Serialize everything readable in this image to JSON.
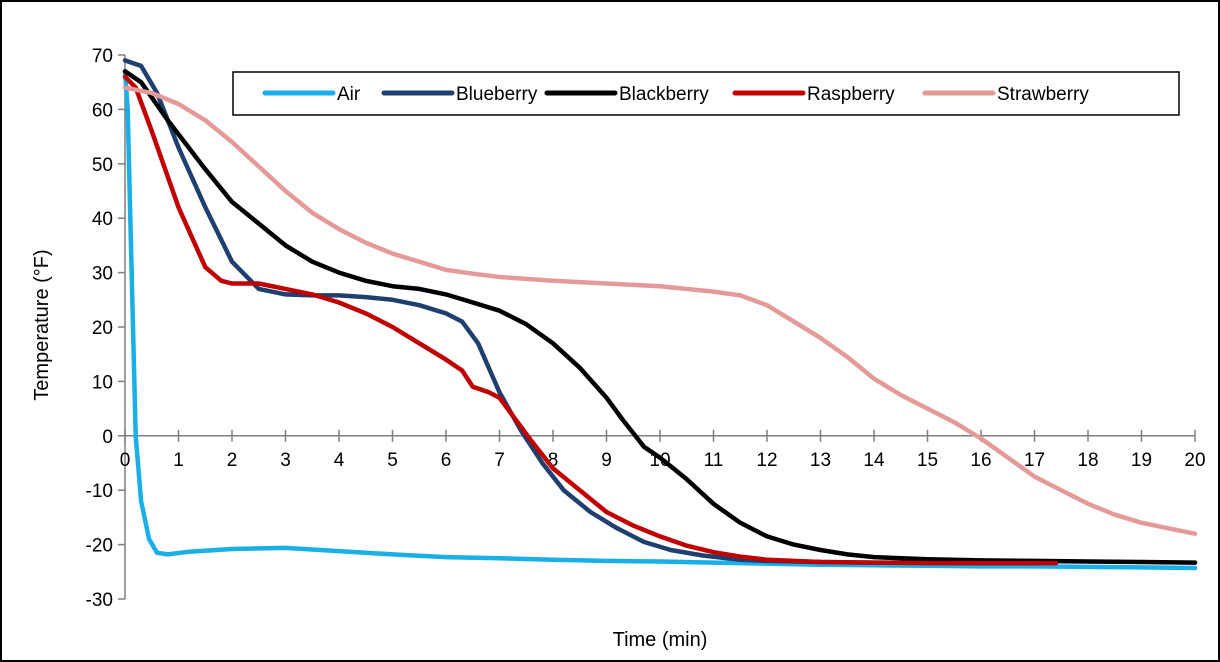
{
  "chart_data": {
    "type": "line",
    "title": "",
    "xlabel": "Time (min)",
    "ylabel": "Temperature (°F)",
    "xlim": [
      0,
      20
    ],
    "ylim": [
      -30,
      70
    ],
    "xticks": [
      "0",
      "1",
      "2",
      "3",
      "4",
      "5",
      "6",
      "7",
      "8",
      "9",
      "10",
      "11",
      "12",
      "13",
      "14",
      "15",
      "16",
      "17",
      "18",
      "19",
      "20"
    ],
    "yticks": [
      "70",
      "60",
      "50",
      "40",
      "30",
      "20",
      "10",
      "0",
      "-10",
      "-20",
      "-30"
    ],
    "grid": false,
    "legend_position": "top-right",
    "series": [
      {
        "name": "Air",
        "color": "#1AAFE6",
        "points": [
          [
            0,
            67
          ],
          [
            0.05,
            60
          ],
          [
            0.1,
            40
          ],
          [
            0.15,
            20
          ],
          [
            0.2,
            0
          ],
          [
            0.3,
            -12
          ],
          [
            0.45,
            -19
          ],
          [
            0.6,
            -21.5
          ],
          [
            0.8,
            -21.8
          ],
          [
            1.2,
            -21.3
          ],
          [
            2,
            -20.8
          ],
          [
            3,
            -20.6
          ],
          [
            4,
            -21.2
          ],
          [
            5,
            -21.8
          ],
          [
            6,
            -22.3
          ],
          [
            7,
            -22.5
          ],
          [
            8,
            -22.8
          ],
          [
            9,
            -23
          ],
          [
            10,
            -23.1
          ],
          [
            11,
            -23.3
          ],
          [
            12,
            -23.5
          ],
          [
            13,
            -23.7
          ],
          [
            14,
            -23.8
          ],
          [
            15,
            -23.9
          ],
          [
            16,
            -24
          ],
          [
            17,
            -24
          ],
          [
            18,
            -24.1
          ],
          [
            19,
            -24.2
          ],
          [
            20,
            -24.3
          ]
        ]
      },
      {
        "name": "Blueberry",
        "color": "#1F3F6E",
        "points": [
          [
            0,
            69
          ],
          [
            0.3,
            68
          ],
          [
            0.6,
            63
          ],
          [
            1,
            53
          ],
          [
            1.5,
            42
          ],
          [
            2,
            32
          ],
          [
            2.5,
            27
          ],
          [
            3,
            26
          ],
          [
            3.5,
            25.8
          ],
          [
            4,
            25.8
          ],
          [
            4.5,
            25.5
          ],
          [
            5,
            25
          ],
          [
            5.5,
            24
          ],
          [
            6,
            22.5
          ],
          [
            6.3,
            21
          ],
          [
            6.6,
            17
          ],
          [
            7,
            8
          ],
          [
            7.4,
            1
          ],
          [
            7.8,
            -5
          ],
          [
            8.2,
            -10
          ],
          [
            8.7,
            -14
          ],
          [
            9.2,
            -17
          ],
          [
            9.7,
            -19.5
          ],
          [
            10.2,
            -21
          ],
          [
            10.8,
            -22
          ],
          [
            11.5,
            -22.8
          ],
          [
            12,
            -23
          ],
          [
            13,
            -23.2
          ],
          [
            14,
            -23.3
          ],
          [
            15,
            -23.3
          ],
          [
            16,
            -23.4
          ],
          [
            17,
            -23.4
          ]
        ]
      },
      {
        "name": "Blackberry",
        "color": "#000000",
        "points": [
          [
            0,
            67
          ],
          [
            0.3,
            65
          ],
          [
            0.8,
            58
          ],
          [
            1.5,
            49
          ],
          [
            2,
            43
          ],
          [
            2.5,
            39
          ],
          [
            3,
            35
          ],
          [
            3.5,
            32
          ],
          [
            4,
            30
          ],
          [
            4.5,
            28.5
          ],
          [
            5,
            27.5
          ],
          [
            5.5,
            27
          ],
          [
            6,
            26
          ],
          [
            6.5,
            24.5
          ],
          [
            7,
            23
          ],
          [
            7.5,
            20.5
          ],
          [
            8,
            17
          ],
          [
            8.5,
            12.5
          ],
          [
            9,
            7
          ],
          [
            9.3,
            3
          ],
          [
            9.7,
            -2
          ],
          [
            10,
            -4
          ],
          [
            10.5,
            -8
          ],
          [
            11,
            -12.5
          ],
          [
            11.5,
            -16
          ],
          [
            12,
            -18.5
          ],
          [
            12.5,
            -20
          ],
          [
            13,
            -21
          ],
          [
            13.5,
            -21.8
          ],
          [
            14,
            -22.3
          ],
          [
            15,
            -22.7
          ],
          [
            16,
            -22.9
          ],
          [
            17,
            -23
          ],
          [
            18,
            -23.1
          ],
          [
            19,
            -23.2
          ],
          [
            20,
            -23.3
          ]
        ]
      },
      {
        "name": "Raspberry",
        "color": "#C00000",
        "points": [
          [
            0,
            66
          ],
          [
            0.2,
            64
          ],
          [
            0.5,
            56
          ],
          [
            1,
            42
          ],
          [
            1.5,
            31
          ],
          [
            1.8,
            28.5
          ],
          [
            2,
            28
          ],
          [
            2.5,
            28
          ],
          [
            3,
            27
          ],
          [
            3.5,
            26
          ],
          [
            4,
            24.5
          ],
          [
            4.5,
            22.5
          ],
          [
            5,
            20
          ],
          [
            5.5,
            17
          ],
          [
            6,
            14
          ],
          [
            6.3,
            12
          ],
          [
            6.5,
            9
          ],
          [
            6.8,
            8
          ],
          [
            7,
            7
          ],
          [
            7.3,
            3
          ],
          [
            7.6,
            -1
          ],
          [
            8,
            -6
          ],
          [
            8.5,
            -10
          ],
          [
            9,
            -14
          ],
          [
            9.5,
            -16.5
          ],
          [
            10,
            -18.5
          ],
          [
            10.5,
            -20.2
          ],
          [
            11,
            -21.4
          ],
          [
            11.5,
            -22.2
          ],
          [
            12,
            -22.8
          ],
          [
            13,
            -23.2
          ],
          [
            14,
            -23.3
          ],
          [
            15,
            -23.4
          ],
          [
            16,
            -23.4
          ],
          [
            17,
            -23.4
          ],
          [
            17.4,
            -23.4
          ]
        ]
      },
      {
        "name": "Strawberry",
        "color": "#E39A98",
        "points": [
          [
            0,
            64
          ],
          [
            0.5,
            63
          ],
          [
            1,
            61
          ],
          [
            1.5,
            58
          ],
          [
            2,
            54
          ],
          [
            2.5,
            49.5
          ],
          [
            3,
            45
          ],
          [
            3.5,
            41
          ],
          [
            4,
            38
          ],
          [
            4.5,
            35.5
          ],
          [
            5,
            33.5
          ],
          [
            5.5,
            32
          ],
          [
            6,
            30.5
          ],
          [
            6.5,
            29.8
          ],
          [
            7,
            29.2
          ],
          [
            8,
            28.5
          ],
          [
            9,
            28
          ],
          [
            10,
            27.5
          ],
          [
            11,
            26.5
          ],
          [
            11.5,
            25.8
          ],
          [
            12,
            24
          ],
          [
            12.5,
            21
          ],
          [
            13,
            18
          ],
          [
            13.5,
            14.5
          ],
          [
            14,
            10.5
          ],
          [
            14.5,
            7.5
          ],
          [
            15,
            5
          ],
          [
            15.5,
            2.5
          ],
          [
            16,
            -0.5
          ],
          [
            16.5,
            -4
          ],
          [
            17,
            -7.5
          ],
          [
            17.5,
            -10
          ],
          [
            18,
            -12.5
          ],
          [
            18.5,
            -14.5
          ],
          [
            19,
            -16
          ],
          [
            19.5,
            -17
          ],
          [
            20,
            -18
          ]
        ]
      }
    ]
  }
}
